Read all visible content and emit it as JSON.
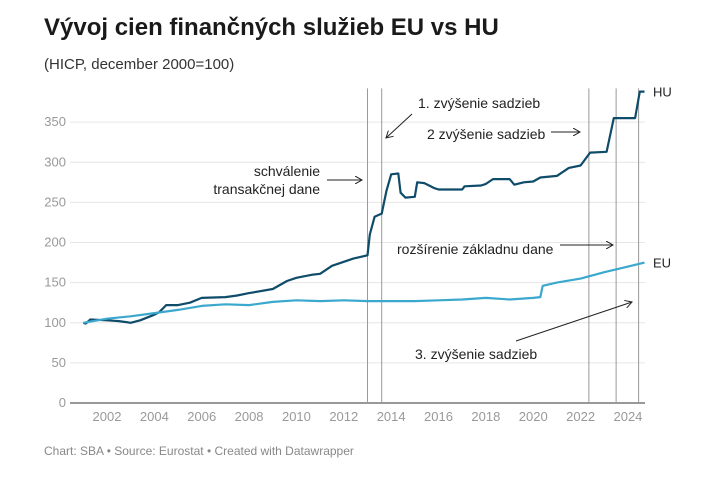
{
  "chart_data": {
    "type": "line",
    "title": "Vývoj cien finančných služieb EU vs HU",
    "subtitle": "(HICP, december 2000=100)",
    "footer": "Chart: SBA • Source: Eurostat • Created with Datawrapper",
    "xlabel": "",
    "ylabel": "",
    "xlim": [
      2000.8,
      2024.9
    ],
    "ylim": [
      0,
      390
    ],
    "x_ticks": [
      "2002",
      "2004",
      "2006",
      "2008",
      "2010",
      "2012",
      "2014",
      "2016",
      "2018",
      "2020",
      "2022",
      "2024"
    ],
    "y_ticks": [
      "0",
      "50",
      "100",
      "150",
      "200",
      "250",
      "300",
      "350"
    ],
    "grid": true,
    "series": [
      {
        "name": "HU",
        "color": "#0f4c69",
        "points": [
          [
            2001.0,
            100
          ],
          [
            2001.1,
            99
          ],
          [
            2001.3,
            104
          ],
          [
            2002.0,
            103
          ],
          [
            2002.5,
            102
          ],
          [
            2003.0,
            100
          ],
          [
            2003.4,
            103
          ],
          [
            2004.0,
            110
          ],
          [
            2004.2,
            113
          ],
          [
            2004.5,
            122
          ],
          [
            2005.0,
            122
          ],
          [
            2005.5,
            125
          ],
          [
            2006.0,
            131
          ],
          [
            2007.0,
            132
          ],
          [
            2007.5,
            134
          ],
          [
            2008.0,
            137
          ],
          [
            2009.0,
            142
          ],
          [
            2009.6,
            152
          ],
          [
            2010.0,
            156
          ],
          [
            2010.7,
            160
          ],
          [
            2011.0,
            161
          ],
          [
            2011.5,
            171
          ],
          [
            2012.0,
            176
          ],
          [
            2012.4,
            180
          ],
          [
            2013.0,
            184
          ],
          [
            2013.1,
            210
          ],
          [
            2013.3,
            232
          ],
          [
            2013.6,
            236
          ],
          [
            2013.8,
            264
          ],
          [
            2014.0,
            285
          ],
          [
            2014.3,
            286
          ],
          [
            2014.4,
            262
          ],
          [
            2014.6,
            256
          ],
          [
            2015.0,
            257
          ],
          [
            2015.1,
            275
          ],
          [
            2015.4,
            274
          ],
          [
            2015.8,
            268
          ],
          [
            2016.0,
            266
          ],
          [
            2017.0,
            266
          ],
          [
            2017.1,
            270
          ],
          [
            2017.8,
            271
          ],
          [
            2018.0,
            273
          ],
          [
            2018.3,
            279
          ],
          [
            2019.0,
            279
          ],
          [
            2019.2,
            272
          ],
          [
            2019.6,
            275
          ],
          [
            2020.0,
            276
          ],
          [
            2020.3,
            281
          ],
          [
            2021.0,
            283
          ],
          [
            2021.5,
            293
          ],
          [
            2022.0,
            296
          ],
          [
            2022.4,
            312
          ],
          [
            2023.1,
            313
          ],
          [
            2023.4,
            355
          ],
          [
            2024.3,
            355
          ],
          [
            2024.5,
            388
          ],
          [
            2024.7,
            388
          ]
        ]
      },
      {
        "name": "EU",
        "color": "#3ba8cd",
        "points": [
          [
            2001.0,
            100
          ],
          [
            2002.0,
            105
          ],
          [
            2003.0,
            108
          ],
          [
            2004.0,
            112
          ],
          [
            2005.0,
            116
          ],
          [
            2006.0,
            121
          ],
          [
            2007.0,
            123
          ],
          [
            2008.0,
            122
          ],
          [
            2009.0,
            126
          ],
          [
            2010.0,
            128
          ],
          [
            2011.0,
            127
          ],
          [
            2012.0,
            128
          ],
          [
            2013.0,
            127
          ],
          [
            2014.0,
            127
          ],
          [
            2015.0,
            127
          ],
          [
            2016.0,
            128
          ],
          [
            2017.0,
            129
          ],
          [
            2018.0,
            131
          ],
          [
            2019.0,
            129
          ],
          [
            2020.0,
            131
          ],
          [
            2020.3,
            132
          ],
          [
            2020.4,
            146
          ],
          [
            2021.0,
            150
          ],
          [
            2022.0,
            155
          ],
          [
            2023.0,
            163
          ],
          [
            2024.0,
            170
          ],
          [
            2024.7,
            175
          ]
        ]
      }
    ],
    "event_lines": [
      2013.0,
      2013.6,
      2022.35,
      2023.5,
      2024.45
    ],
    "annotations": [
      {
        "text": [
          "schválenie",
          "transakčnej dane"
        ]
      },
      {
        "text": [
          "1. zvýšenie sadzieb"
        ]
      },
      {
        "text": [
          "2 zvýšenie sadzieb"
        ]
      },
      {
        "text": [
          "rozšírenie základnu dane"
        ]
      },
      {
        "text": [
          "3. zvýšenie sadzieb"
        ]
      }
    ]
  }
}
